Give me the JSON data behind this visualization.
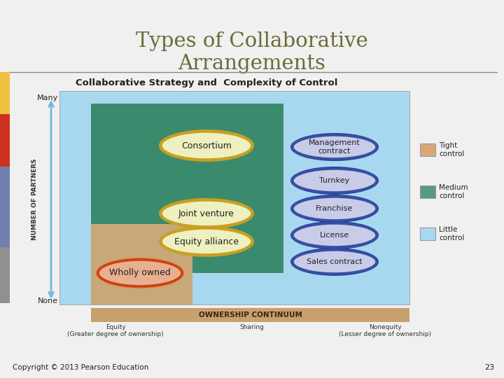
{
  "title": "Types of Collaborative\nArrangements",
  "subtitle": "Collaborative Strategy and  Complexity of Control",
  "copyright": "Copyright © 2013 Pearson Education",
  "page_num": "23",
  "title_color": "#6b6b3a",
  "bg_color": "#f0f0f0",
  "slide_bar_colors": [
    "#f0c040",
    "#d03020",
    "#7080b0",
    "#909090"
  ],
  "light_blue_bg": "#a8d8f0",
  "green_bg": "#3a8a6e",
  "tan_bg": "#c8a878",
  "ellipse_fill_green": "#eef0c0",
  "ellipse_fill_blue": "#c8cce8",
  "ellipse_stroke_yellow": "#c8a020",
  "ellipse_stroke_red": "#cc4010",
  "ellipse_stroke_blue": "#3850a0",
  "ownership_bar_color": "#c8a070",
  "axis_arrow_color": "#70b8e0",
  "legend_tight_color": "#d8a878",
  "legend_medium_color": "#5a9a7e",
  "legend_little_color": "#a8d8f0"
}
